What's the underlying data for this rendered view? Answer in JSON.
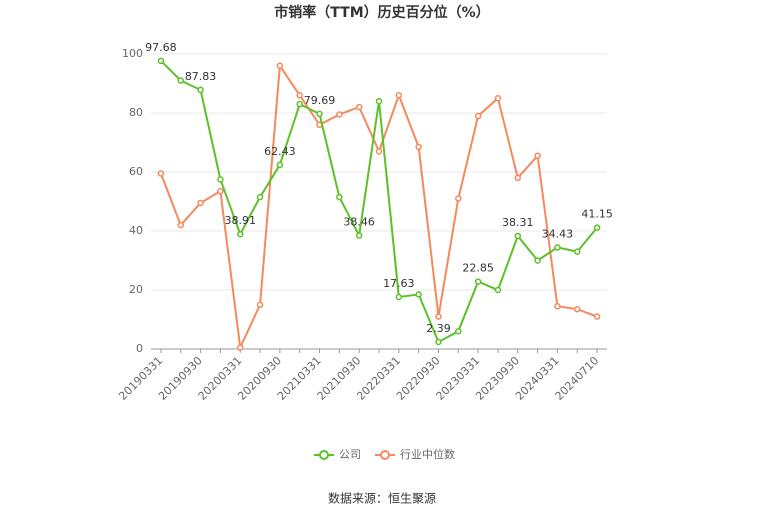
{
  "chart_data": {
    "type": "line",
    "title": "市销率（TTM）历史百分位（%）",
    "categories": [
      "20190331",
      null,
      "20190930",
      null,
      "20200331",
      null,
      "20200930",
      null,
      "20210331",
      null,
      "20210930",
      null,
      "20220331",
      null,
      "20220930",
      null,
      "20230331",
      null,
      "20230930",
      null,
      "20240331",
      null,
      "20240710"
    ],
    "series": [
      {
        "name": "公司",
        "color": "#5cc128",
        "data_labels_every": 2,
        "values": [
          97.68,
          91,
          87.83,
          57.5,
          38.91,
          51.5,
          62.43,
          83,
          79.69,
          51.5,
          38.46,
          84,
          17.63,
          18.5,
          2.39,
          6,
          22.85,
          20,
          38.31,
          30,
          34.43,
          33,
          41.15
        ]
      },
      {
        "name": "行业中位数",
        "color": "#f5895e",
        "values": [
          59.5,
          42,
          49.5,
          53.5,
          0.5,
          15,
          96,
          86,
          76,
          79.5,
          82,
          67,
          86,
          68.5,
          11,
          51,
          79,
          85,
          58,
          65.5,
          14.5,
          13.5,
          11
        ]
      }
    ],
    "ylim": [
      0,
      100
    ],
    "yticks": [
      0,
      20,
      40,
      60,
      80,
      100
    ],
    "grid": true,
    "legend": "bottom",
    "source": "数据来源：恒生聚源"
  }
}
